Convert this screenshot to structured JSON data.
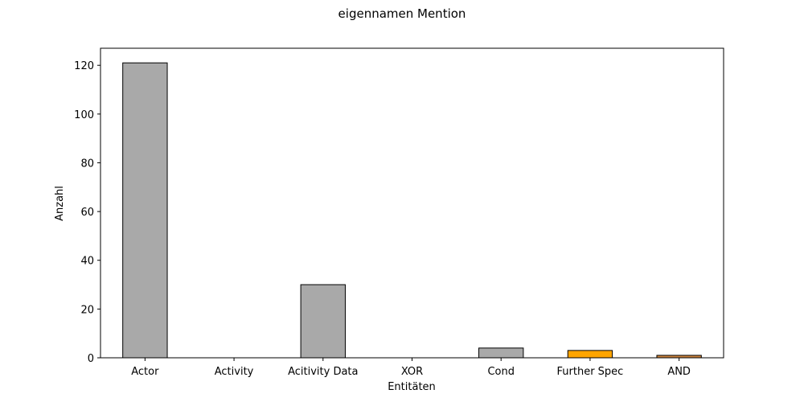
{
  "chart_data": {
    "type": "bar",
    "title": "eigennamen Mention",
    "xlabel": "Entitäten",
    "ylabel": "Anzahl",
    "categories": [
      "Actor",
      "Activity",
      "Acitivity Data",
      "XOR",
      "Cond",
      "Further Spec",
      "AND"
    ],
    "values": [
      121,
      0,
      30,
      0,
      4,
      3,
      1
    ],
    "bar_colors": [
      "#a9a9a9",
      "#a9a9a9",
      "#a9a9a9",
      "#a9a9a9",
      "#a9a9a9",
      "#ffa500",
      "#cd853f"
    ],
    "edge_color": "#000000",
    "ylim": [
      0,
      127
    ],
    "yticks": [
      0,
      20,
      40,
      60,
      80,
      100,
      120
    ],
    "grid": false,
    "legend": "none"
  }
}
